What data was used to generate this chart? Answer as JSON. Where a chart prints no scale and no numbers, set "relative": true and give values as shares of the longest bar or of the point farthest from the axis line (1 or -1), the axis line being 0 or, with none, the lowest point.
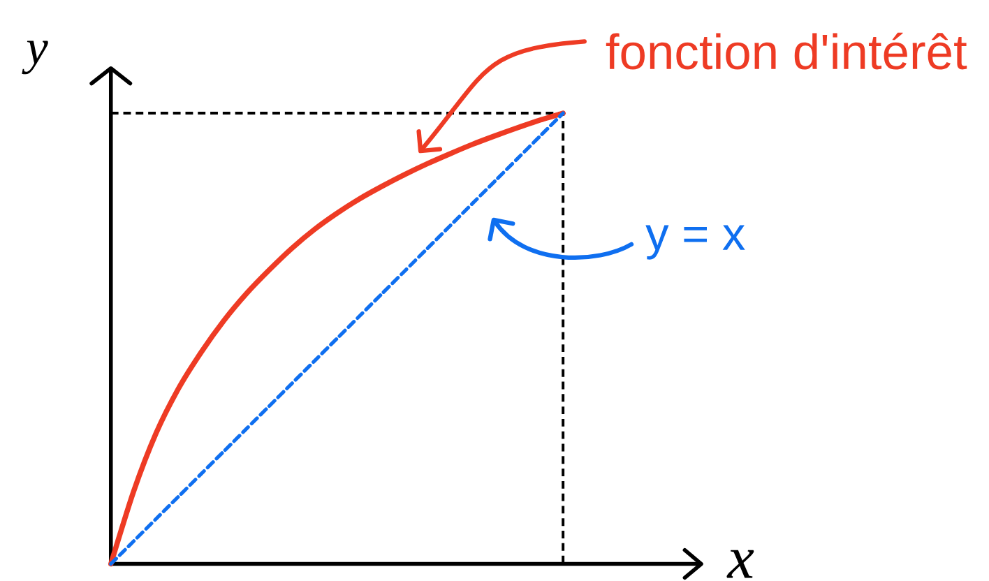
{
  "chart_data": {
    "type": "line",
    "relative": true,
    "xlabel": "x",
    "ylabel": "y",
    "legend": "top right",
    "categories": [
      null,
      null,
      null,
      null,
      null,
      null,
      null,
      null,
      null,
      null,
      null,
      null,
      null,
      null,
      null,
      null,
      null,
      null,
      null,
      null,
      null
    ],
    "series": [
      {
        "name": "fonction d'intérêt",
        "color": "#ee3b24",
        "line_style": "solid",
        "values": [
          0,
          0.16,
          0.29,
          0.39,
          0.47,
          0.54,
          0.6,
          0.652,
          0.7,
          0.742,
          0.778,
          0.81,
          0.838,
          0.864,
          0.888,
          0.91,
          0.931,
          0.95,
          0.968,
          0.985,
          1
        ]
      },
      {
        "name": "y = x",
        "color": "#0f6ff0",
        "line_style": "dashed",
        "values": [
          0,
          0.05,
          0.1,
          0.15,
          0.2,
          0.25,
          0.3,
          0.35,
          0.4,
          0.45,
          0.5,
          0.55,
          0.6,
          0.65,
          0.7,
          0.75,
          0.8,
          0.85,
          0.9,
          0.95,
          1
        ]
      }
    ],
    "ref_lines": [
      {
        "axis": "y",
        "value": 1,
        "color": "#000000",
        "line_style": "dashed"
      }
    ]
  }
}
